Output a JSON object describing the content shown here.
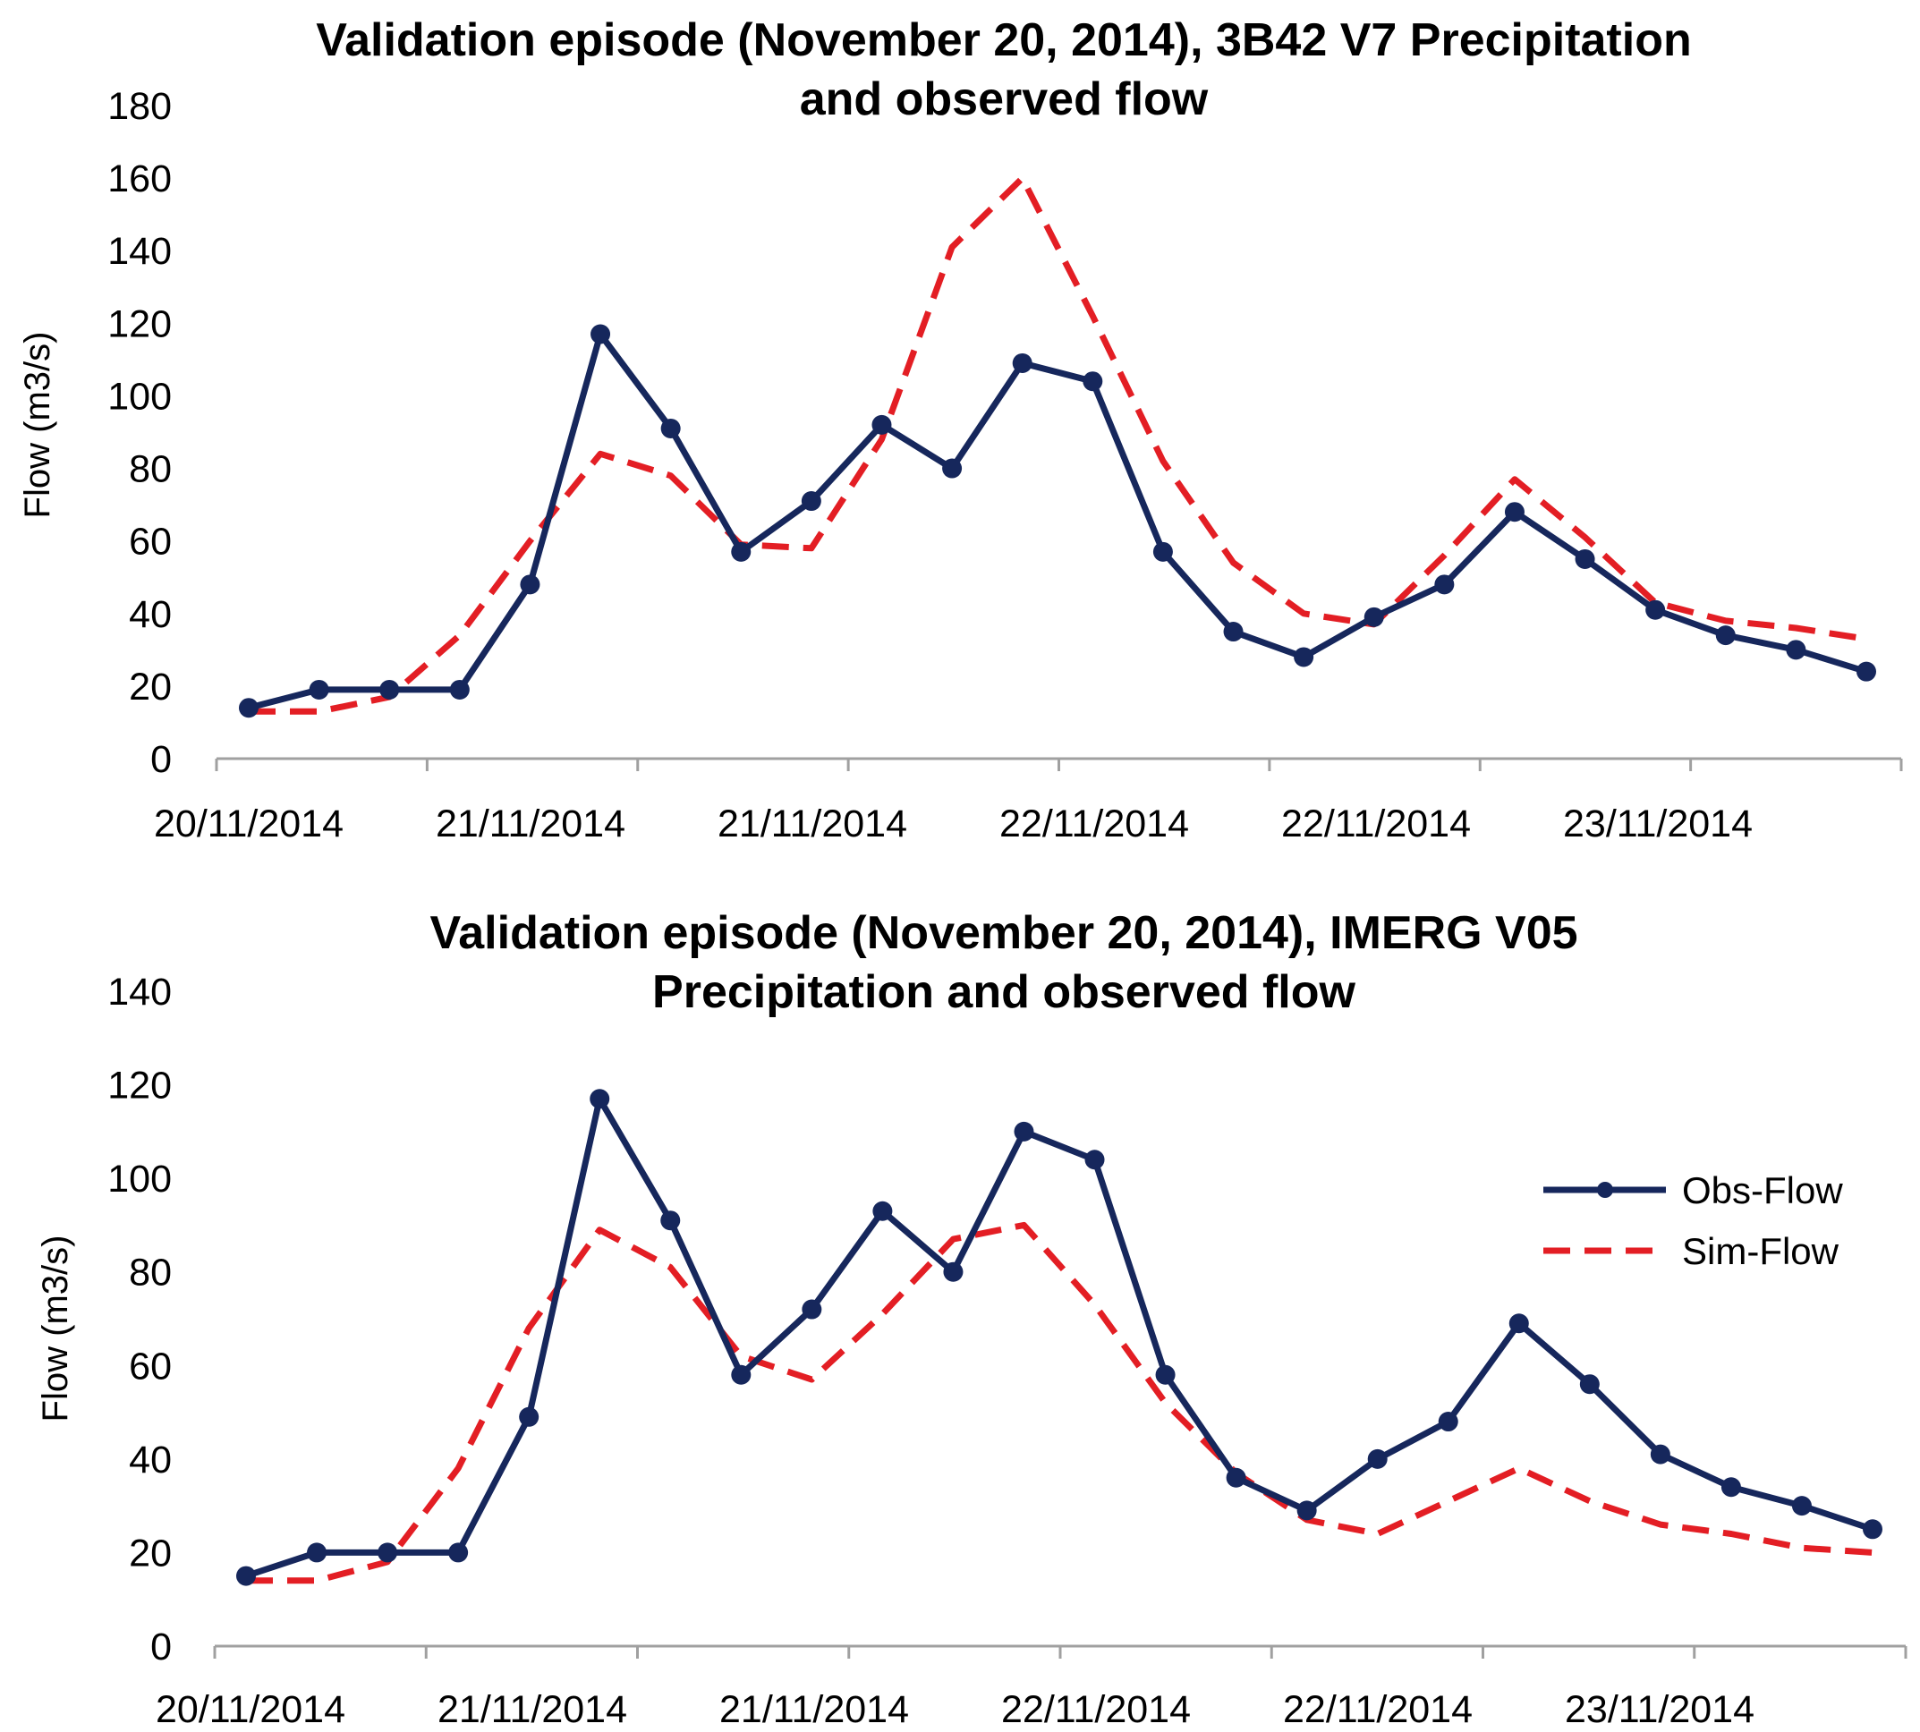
{
  "colors": {
    "obs": "#16275c",
    "sim": "#e31e24",
    "axis": "#a0a0a0"
  },
  "chart_data": [
    {
      "type": "line",
      "title": [
        "Validation episode (November 20, 2014), 3B42 V7 Precipitation",
        "and observed flow"
      ],
      "xlabel": "",
      "ylabel": "Flow (m3/s)",
      "ylim": [
        0,
        180
      ],
      "yticks": [
        "0",
        "20",
        "40",
        "60",
        "80",
        "100",
        "120",
        "140",
        "160",
        "180"
      ],
      "xtick_labels": [
        "20/11/2014",
        "21/11/2014",
        "21/11/2014",
        "22/11/2014",
        "22/11/2014",
        "23/11/2014"
      ],
      "legend": false,
      "series": [
        {
          "name": "Obs-Flow",
          "style": "solid-marker",
          "values": [
            14,
            19,
            19,
            19,
            48,
            117,
            91,
            57,
            71,
            92,
            80,
            109,
            104,
            57,
            35,
            28,
            39,
            48,
            68,
            55,
            41,
            34,
            30,
            24
          ]
        },
        {
          "name": "Sim-Flow",
          "style": "dashed",
          "values": [
            13,
            13,
            17,
            34,
            60,
            84,
            78,
            59,
            58,
            88,
            141,
            160,
            122,
            82,
            54,
            40,
            37,
            56,
            77,
            61,
            43,
            38,
            36,
            33
          ]
        }
      ]
    },
    {
      "type": "line",
      "title": [
        "Validation episode (November 20, 2014), IMERG V05",
        "Precipitation and observed flow"
      ],
      "xlabel": "",
      "ylabel": "Flow (m3/s)",
      "ylim": [
        0,
        140
      ],
      "yticks": [
        "0",
        "20",
        "40",
        "60",
        "80",
        "100",
        "120",
        "140"
      ],
      "xtick_labels": [
        "20/11/2014",
        "21/11/2014",
        "21/11/2014",
        "22/11/2014",
        "22/11/2014",
        "23/11/2014"
      ],
      "legend": true,
      "legend_position": "right",
      "series": [
        {
          "name": "Obs-Flow",
          "style": "solid-marker",
          "values": [
            15,
            20,
            20,
            20,
            49,
            117,
            91,
            58,
            72,
            93,
            80,
            110,
            104,
            58,
            36,
            29,
            40,
            48,
            69,
            56,
            41,
            34,
            30,
            25
          ]
        },
        {
          "name": "Sim-Flow",
          "style": "dashed",
          "values": [
            14,
            14,
            18,
            38,
            68,
            89,
            81,
            62,
            57,
            71,
            87,
            90,
            73,
            52,
            37,
            27,
            24,
            31,
            38,
            31,
            26,
            24,
            21,
            20
          ]
        }
      ]
    }
  ]
}
